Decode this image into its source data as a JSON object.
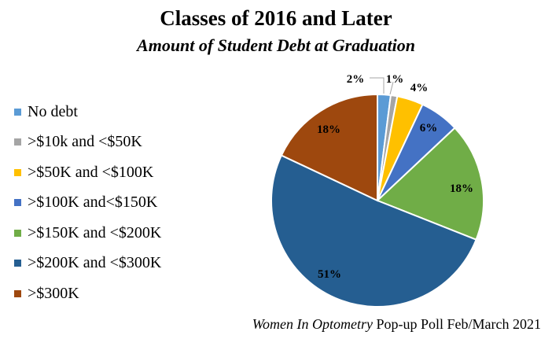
{
  "chart_data": {
    "type": "pie",
    "title": "Classes of 2016 and Later",
    "subtitle": "Amount of Student Debt at Graduation",
    "legend_position": "left",
    "categories": [
      "No debt",
      ">$10k and <$50K",
      ">$50K and <$100K",
      ">$100K and<$150K",
      ">$150K and <$200K",
      ">$200K and <$300K",
      ">$300K"
    ],
    "values": [
      2,
      1,
      4,
      6,
      18,
      51,
      18
    ],
    "labels": [
      "2%",
      "1%",
      "4%",
      "6%",
      "18%",
      "51%",
      "18%"
    ],
    "colors": [
      "#5B9BD5",
      "#A5A5A5",
      "#FFC000",
      "#4472C4",
      "#70AD47",
      "#255E91",
      "#9E480E"
    ]
  },
  "source": {
    "italic": "Women In Optometry",
    "rest": " Pop-up Poll Feb/March 2021"
  }
}
